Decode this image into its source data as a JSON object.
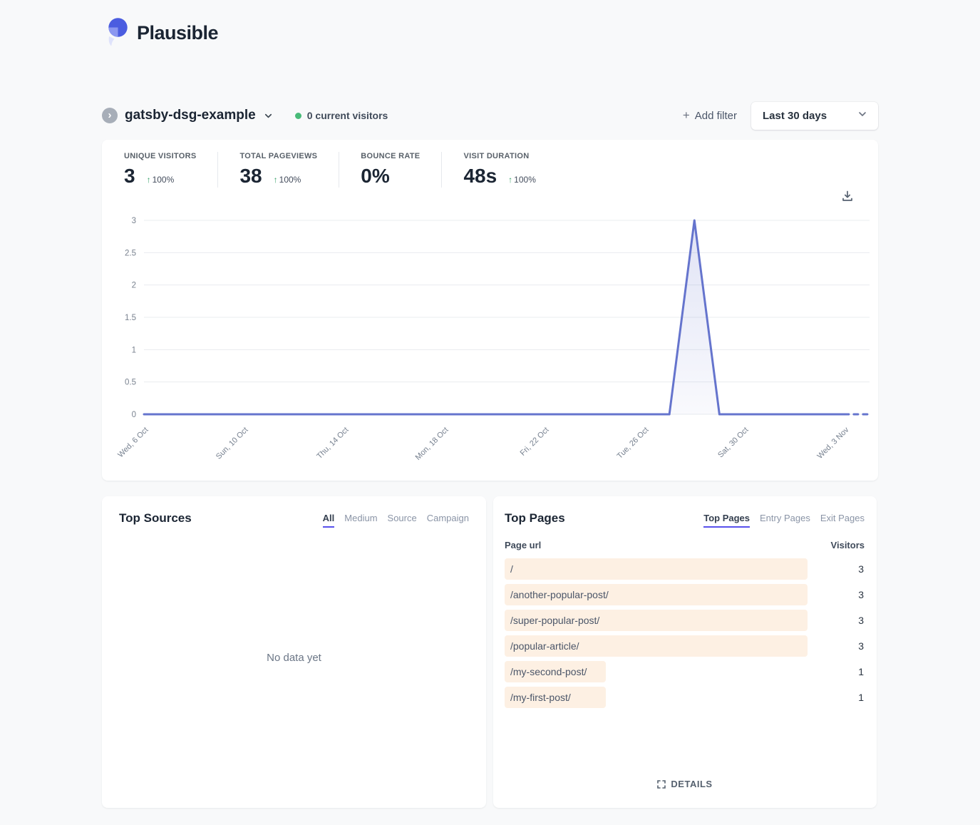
{
  "brand": {
    "name": "Plausible"
  },
  "site": {
    "icon_glyph": "›",
    "name": "gatsby-dsg-example",
    "current_visitors": "0 current visitors"
  },
  "toolbar": {
    "add_filter_icon": "+",
    "add_filter_label": "Add filter",
    "date_range": "Last 30 days"
  },
  "stats": [
    {
      "label": "UNIQUE VISITORS",
      "value": "3",
      "change_arrow": "↑",
      "change": "100%"
    },
    {
      "label": "TOTAL PAGEVIEWS",
      "value": "38",
      "change_arrow": "↑",
      "change": "100%"
    },
    {
      "label": "BOUNCE RATE",
      "value": "0%"
    },
    {
      "label": "VISIT DURATION",
      "value": "48s",
      "change_arrow": "↑",
      "change": "100%"
    }
  ],
  "chart_data": {
    "type": "line",
    "title": "",
    "xlabel": "",
    "ylabel": "",
    "grid": true,
    "legend": false,
    "ylim": [
      0,
      3
    ],
    "yticks": [
      0,
      0.5,
      1,
      1.5,
      2,
      2.5,
      3
    ],
    "ytick_labels": [
      "0",
      "0.5",
      "1",
      "1.5",
      "2",
      "2.5",
      "3"
    ],
    "x": [
      "6 Oct",
      "7 Oct",
      "8 Oct",
      "9 Oct",
      "10 Oct",
      "11 Oct",
      "12 Oct",
      "13 Oct",
      "14 Oct",
      "15 Oct",
      "16 Oct",
      "17 Oct",
      "18 Oct",
      "19 Oct",
      "20 Oct",
      "21 Oct",
      "22 Oct",
      "23 Oct",
      "24 Oct",
      "25 Oct",
      "26 Oct",
      "27 Oct",
      "28 Oct",
      "29 Oct",
      "30 Oct",
      "31 Oct",
      "1 Nov",
      "2 Nov",
      "3 Nov",
      "4 Nov"
    ],
    "values": [
      0,
      0,
      0,
      0,
      0,
      0,
      0,
      0,
      0,
      0,
      0,
      0,
      0,
      0,
      0,
      0,
      0,
      0,
      0,
      0,
      0,
      0,
      3,
      0,
      0,
      0,
      0,
      0,
      0,
      0
    ],
    "tick_indices": [
      0,
      4,
      8,
      12,
      16,
      20,
      24,
      28
    ],
    "tick_labels": [
      "Wed, 6 Oct",
      "Sun, 10 Oct",
      "Thu, 14 Oct",
      "Mon, 18 Oct",
      "Fri, 22 Oct",
      "Tue, 26 Oct",
      "Sat, 30 Oct",
      "Wed, 3 Nov"
    ],
    "dashed_tail_segments": 1
  },
  "top_sources": {
    "title": "Top Sources",
    "tabs": [
      "All",
      "Medium",
      "Source",
      "Campaign"
    ],
    "active_tab": "All",
    "empty": "No data yet"
  },
  "top_pages": {
    "title": "Top Pages",
    "tabs": [
      "Top Pages",
      "Entry Pages",
      "Exit Pages"
    ],
    "active_tab": "Top Pages",
    "col_url": "Page url",
    "col_visitors": "Visitors",
    "rows": [
      {
        "url": "/",
        "visitors": 3
      },
      {
        "url": "/another-popular-post/",
        "visitors": 3
      },
      {
        "url": "/super-popular-post/",
        "visitors": 3
      },
      {
        "url": "/popular-article/",
        "visitors": 3
      },
      {
        "url": "/my-second-post/",
        "visitors": 1
      },
      {
        "url": "/my-first-post/",
        "visitors": 1
      }
    ],
    "details_label": "DETAILS"
  },
  "colors": {
    "accent": "#5850ec",
    "chart_line": "#6574cd",
    "chart_fill_top": "rgba(101,116,205,0.20)",
    "chart_fill_bottom": "rgba(101,116,205,0.04)",
    "gridline": "#e9ecef",
    "bar_fill": "#fdf0e3",
    "positive": "#38a169",
    "live_dot": "#48bb78"
  }
}
